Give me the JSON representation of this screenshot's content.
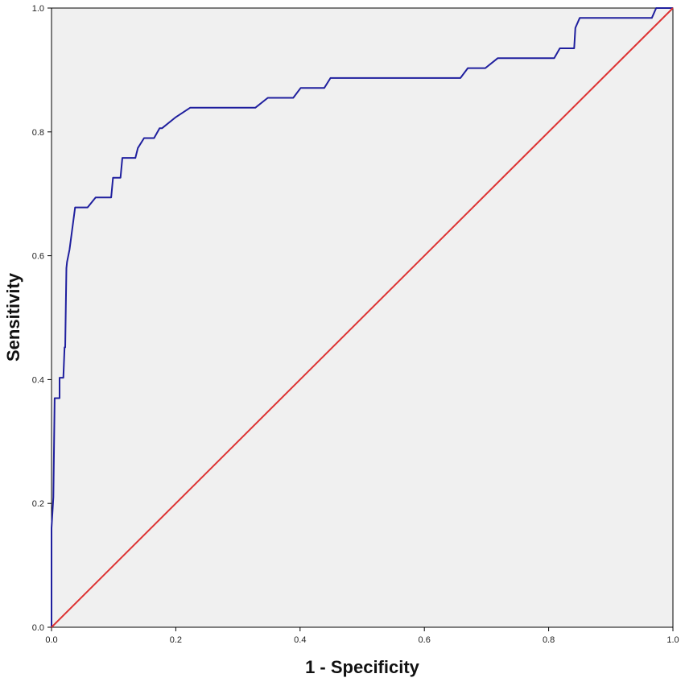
{
  "chart_data": {
    "type": "line",
    "title": "",
    "xlabel": "1 - Specificity",
    "ylabel": "Sensitivity",
    "xlim": [
      0,
      1
    ],
    "ylim": [
      0,
      1
    ],
    "x_ticks": [
      "0.0",
      "0.2",
      "0.4",
      "0.6",
      "0.8",
      "1.0"
    ],
    "y_ticks": [
      "0.0",
      "0.2",
      "0.4",
      "0.6",
      "0.8",
      "1.0"
    ],
    "grid": false,
    "legend": "none",
    "background": "#f0f0f0",
    "series": [
      {
        "color": "#1f1f9e",
        "x": [
          0.0,
          0.0,
          0.003,
          0.005,
          0.006,
          0.013,
          0.013,
          0.019,
          0.021,
          0.022,
          0.024,
          0.025,
          0.029,
          0.038,
          0.041,
          0.058,
          0.071,
          0.096,
          0.099,
          0.111,
          0.114,
          0.135,
          0.139,
          0.149,
          0.165,
          0.174,
          0.178,
          0.199,
          0.223,
          0.328,
          0.348,
          0.389,
          0.401,
          0.439,
          0.449,
          0.512,
          0.658,
          0.67,
          0.698,
          0.718,
          0.809,
          0.818,
          0.841,
          0.843,
          0.85,
          0.966,
          0.973,
          1.0
        ],
        "y": [
          0.0,
          0.16,
          0.21,
          0.37,
          0.37,
          0.37,
          0.403,
          0.403,
          0.452,
          0.452,
          0.58,
          0.59,
          0.61,
          0.678,
          0.678,
          0.678,
          0.694,
          0.694,
          0.726,
          0.726,
          0.758,
          0.758,
          0.774,
          0.79,
          0.79,
          0.806,
          0.806,
          0.823,
          0.839,
          0.839,
          0.855,
          0.855,
          0.871,
          0.871,
          0.887,
          0.887,
          0.887,
          0.903,
          0.903,
          0.919,
          0.919,
          0.935,
          0.935,
          0.968,
          0.984,
          0.984,
          1.0,
          1.0
        ]
      },
      {
        "color": "#dd3333",
        "x": [
          0,
          1
        ],
        "y": [
          0,
          1
        ]
      }
    ]
  }
}
